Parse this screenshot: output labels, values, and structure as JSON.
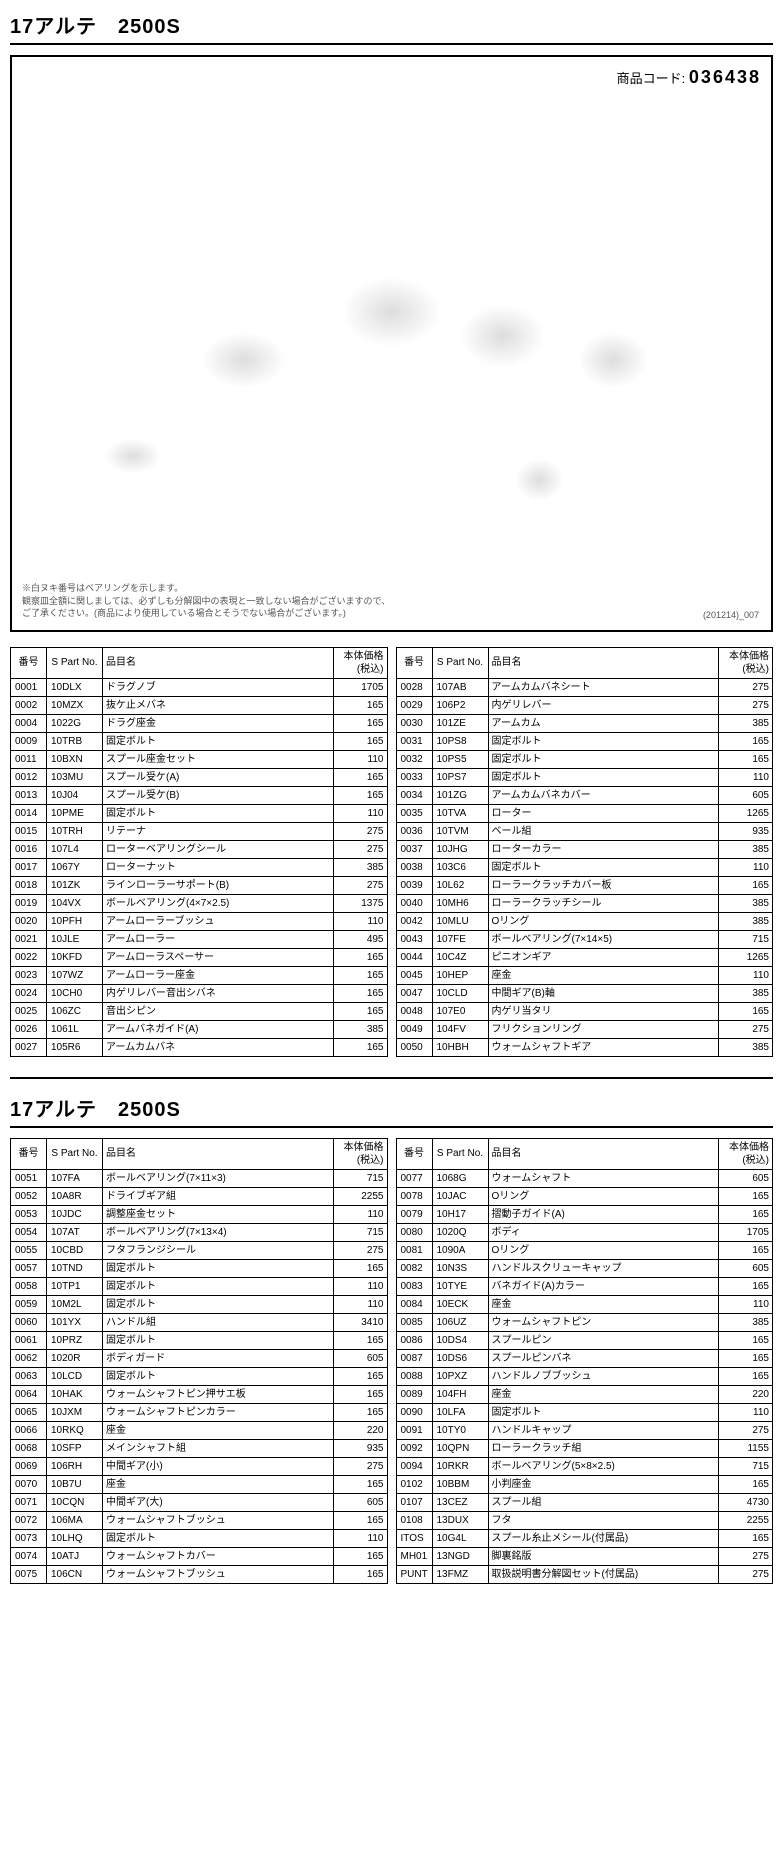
{
  "page1": {
    "title": "17アルテ　2500S",
    "product_code_label": "商品コード:",
    "product_code": "036438",
    "diagram_note1": "※白ヌキ番号はベアリングを示します。",
    "diagram_note2": "観察皿全額に関しましては、必ずしも分解図中の表現と一致しない場合がございますので、",
    "diagram_note3": "ご了承ください。(商品により使用している場合とそうでない場合がございます。)",
    "diagram_rev": "(201214)_007",
    "headers": {
      "no": "番号",
      "part": "S Part No.",
      "name": "品目名",
      "price": "本体価格(税込)"
    },
    "left": [
      {
        "no": "0001",
        "part": "10DLX",
        "name": "ドラグノブ",
        "price": "1705"
      },
      {
        "no": "0002",
        "part": "10MZX",
        "name": "抜ケ止メバネ",
        "price": "165"
      },
      {
        "no": "0004",
        "part": "1022G",
        "name": "ドラグ座金",
        "price": "165"
      },
      {
        "no": "0009",
        "part": "10TRB",
        "name": "固定ボルト",
        "price": "165"
      },
      {
        "no": "0011",
        "part": "10BXN",
        "name": "スプール座金セット",
        "price": "110"
      },
      {
        "no": "0012",
        "part": "103MU",
        "name": "スプール受ケ(A)",
        "price": "165"
      },
      {
        "no": "0013",
        "part": "10J04",
        "name": "スプール受ケ(B)",
        "price": "165"
      },
      {
        "no": "0014",
        "part": "10PME",
        "name": "固定ボルト",
        "price": "110"
      },
      {
        "no": "0015",
        "part": "10TRH",
        "name": "リテーナ",
        "price": "275"
      },
      {
        "no": "0016",
        "part": "107L4",
        "name": "ローターベアリングシール",
        "price": "275"
      },
      {
        "no": "0017",
        "part": "1067Y",
        "name": "ローターナット",
        "price": "385"
      },
      {
        "no": "0018",
        "part": "101ZK",
        "name": "ラインローラーサポート(B)",
        "price": "275"
      },
      {
        "no": "0019",
        "part": "104VX",
        "name": "ボールベアリング(4×7×2.5)",
        "price": "1375"
      },
      {
        "no": "0020",
        "part": "10PFH",
        "name": "アームローラーブッシュ",
        "price": "110"
      },
      {
        "no": "0021",
        "part": "10JLE",
        "name": "アームローラー",
        "price": "495"
      },
      {
        "no": "0022",
        "part": "10KFD",
        "name": "アームローラスペーサー",
        "price": "165"
      },
      {
        "no": "0023",
        "part": "107WZ",
        "name": "アームローラー座金",
        "price": "165"
      },
      {
        "no": "0024",
        "part": "10CH0",
        "name": "内ゲリレバー音出シバネ",
        "price": "165"
      },
      {
        "no": "0025",
        "part": "106ZC",
        "name": "音出シピン",
        "price": "165"
      },
      {
        "no": "0026",
        "part": "1061L",
        "name": "アームバネガイド(A)",
        "price": "385"
      },
      {
        "no": "0027",
        "part": "105R6",
        "name": "アームカムバネ",
        "price": "165"
      }
    ],
    "right": [
      {
        "no": "0028",
        "part": "107AB",
        "name": "アームカムバネシート",
        "price": "275"
      },
      {
        "no": "0029",
        "part": "106P2",
        "name": "内ゲリレバー",
        "price": "275"
      },
      {
        "no": "0030",
        "part": "101ZE",
        "name": "アームカム",
        "price": "385"
      },
      {
        "no": "0031",
        "part": "10PS8",
        "name": "固定ボルト",
        "price": "165"
      },
      {
        "no": "0032",
        "part": "10PS5",
        "name": "固定ボルト",
        "price": "165"
      },
      {
        "no": "0033",
        "part": "10PS7",
        "name": "固定ボルト",
        "price": "110"
      },
      {
        "no": "0034",
        "part": "101ZG",
        "name": "アームカムバネカバー",
        "price": "605"
      },
      {
        "no": "0035",
        "part": "10TVA",
        "name": "ローター",
        "price": "1265"
      },
      {
        "no": "0036",
        "part": "10TVM",
        "name": "ベール組",
        "price": "935"
      },
      {
        "no": "0037",
        "part": "10JHG",
        "name": "ローターカラー",
        "price": "385"
      },
      {
        "no": "0038",
        "part": "103C6",
        "name": "固定ボルト",
        "price": "110"
      },
      {
        "no": "0039",
        "part": "10L62",
        "name": "ローラークラッチカバー板",
        "price": "165"
      },
      {
        "no": "0040",
        "part": "10MH6",
        "name": "ローラークラッチシール",
        "price": "385"
      },
      {
        "no": "0042",
        "part": "10MLU",
        "name": "Oリング",
        "price": "385"
      },
      {
        "no": "0043",
        "part": "107FE",
        "name": "ボールベアリング(7×14×5)",
        "price": "715"
      },
      {
        "no": "0044",
        "part": "10C4Z",
        "name": "ピニオンギア",
        "price": "1265"
      },
      {
        "no": "0045",
        "part": "10HEP",
        "name": "座金",
        "price": "110"
      },
      {
        "no": "0047",
        "part": "10CLD",
        "name": "中間ギア(B)軸",
        "price": "385"
      },
      {
        "no": "0048",
        "part": "107E0",
        "name": "内ゲリ当タリ",
        "price": "165"
      },
      {
        "no": "0049",
        "part": "104FV",
        "name": "フリクションリング",
        "price": "275"
      },
      {
        "no": "0050",
        "part": "10HBH",
        "name": "ウォームシャフトギア",
        "price": "385"
      }
    ]
  },
  "page2": {
    "title": "17アルテ　2500S",
    "headers": {
      "no": "番号",
      "part": "S Part No.",
      "name": "品目名",
      "price": "本体価格(税込)"
    },
    "left": [
      {
        "no": "0051",
        "part": "107FA",
        "name": "ボールベアリング(7×11×3)",
        "price": "715"
      },
      {
        "no": "0052",
        "part": "10A8R",
        "name": "ドライブギア組",
        "price": "2255"
      },
      {
        "no": "0053",
        "part": "10JDC",
        "name": "調整座金セット",
        "price": "110"
      },
      {
        "no": "0054",
        "part": "107AT",
        "name": "ボールベアリング(7×13×4)",
        "price": "715"
      },
      {
        "no": "0055",
        "part": "10CBD",
        "name": "フタフランジシール",
        "price": "275"
      },
      {
        "no": "0057",
        "part": "10TND",
        "name": "固定ボルト",
        "price": "165"
      },
      {
        "no": "0058",
        "part": "10TP1",
        "name": "固定ボルト",
        "price": "110"
      },
      {
        "no": "0059",
        "part": "10M2L",
        "name": "固定ボルト",
        "price": "110"
      },
      {
        "no": "0060",
        "part": "101YX",
        "name": "ハンドル組",
        "price": "3410"
      },
      {
        "no": "0061",
        "part": "10PRZ",
        "name": "固定ボルト",
        "price": "165"
      },
      {
        "no": "0062",
        "part": "1020R",
        "name": "ボディガード",
        "price": "605"
      },
      {
        "no": "0063",
        "part": "10LCD",
        "name": "固定ボルト",
        "price": "165"
      },
      {
        "no": "0064",
        "part": "10HAK",
        "name": "ウォームシャフトピン押サエ板",
        "price": "165"
      },
      {
        "no": "0065",
        "part": "10JXM",
        "name": "ウォームシャフトピンカラー",
        "price": "165"
      },
      {
        "no": "0066",
        "part": "10RKQ",
        "name": "座金",
        "price": "220"
      },
      {
        "no": "0068",
        "part": "10SFP",
        "name": "メインシャフト組",
        "price": "935"
      },
      {
        "no": "0069",
        "part": "106RH",
        "name": "中間ギア(小)",
        "price": "275"
      },
      {
        "no": "0070",
        "part": "10B7U",
        "name": "座金",
        "price": "165"
      },
      {
        "no": "0071",
        "part": "10CQN",
        "name": "中間ギア(大)",
        "price": "605"
      },
      {
        "no": "0072",
        "part": "106MA",
        "name": "ウォームシャフトブッシュ",
        "price": "165"
      },
      {
        "no": "0073",
        "part": "10LHQ",
        "name": "固定ボルト",
        "price": "110"
      },
      {
        "no": "0074",
        "part": "10ATJ",
        "name": "ウォームシャフトカバー",
        "price": "165"
      },
      {
        "no": "0075",
        "part": "106CN",
        "name": "ウォームシャフトブッシュ",
        "price": "165"
      }
    ],
    "right": [
      {
        "no": "0077",
        "part": "1068G",
        "name": "ウォームシャフト",
        "price": "605"
      },
      {
        "no": "0078",
        "part": "10JAC",
        "name": "Oリング",
        "price": "165"
      },
      {
        "no": "0079",
        "part": "10H17",
        "name": "摺動子ガイド(A)",
        "price": "165"
      },
      {
        "no": "0080",
        "part": "1020Q",
        "name": "ボディ",
        "price": "1705"
      },
      {
        "no": "0081",
        "part": "1090A",
        "name": "Oリング",
        "price": "165"
      },
      {
        "no": "0082",
        "part": "10N3S",
        "name": "ハンドルスクリューキャップ",
        "price": "605"
      },
      {
        "no": "0083",
        "part": "10TYE",
        "name": "バネガイド(A)カラー",
        "price": "165"
      },
      {
        "no": "0084",
        "part": "10ECK",
        "name": "座金",
        "price": "110"
      },
      {
        "no": "0085",
        "part": "106UZ",
        "name": "ウォームシャフトピン",
        "price": "385"
      },
      {
        "no": "0086",
        "part": "10DS4",
        "name": "スプールピン",
        "price": "165"
      },
      {
        "no": "0087",
        "part": "10DS6",
        "name": "スプールピンバネ",
        "price": "165"
      },
      {
        "no": "0088",
        "part": "10PXZ",
        "name": "ハンドルノブブッシュ",
        "price": "165"
      },
      {
        "no": "0089",
        "part": "104FH",
        "name": "座金",
        "price": "220"
      },
      {
        "no": "0090",
        "part": "10LFA",
        "name": "固定ボルト",
        "price": "110"
      },
      {
        "no": "0091",
        "part": "10TY0",
        "name": "ハンドルキャップ",
        "price": "275"
      },
      {
        "no": "0092",
        "part": "10QPN",
        "name": "ローラークラッチ組",
        "price": "1155"
      },
      {
        "no": "0094",
        "part": "10RKR",
        "name": "ボールベアリング(5×8×2.5)",
        "price": "715"
      },
      {
        "no": "0102",
        "part": "10BBM",
        "name": "小判座金",
        "price": "165"
      },
      {
        "no": "0107",
        "part": "13CEZ",
        "name": "スプール組",
        "price": "4730"
      },
      {
        "no": "0108",
        "part": "13DUX",
        "name": "フタ",
        "price": "2255"
      },
      {
        "no": "ITOS",
        "part": "10G4L",
        "name": "スプール糸止メシール(付属品)",
        "price": "165"
      },
      {
        "no": "MH01",
        "part": "13NGD",
        "name": "脚裏銘版",
        "price": "275"
      },
      {
        "no": "PUNT",
        "part": "13FMZ",
        "name": "取扱説明書分解図セット(付属品)",
        "price": "275"
      }
    ]
  }
}
